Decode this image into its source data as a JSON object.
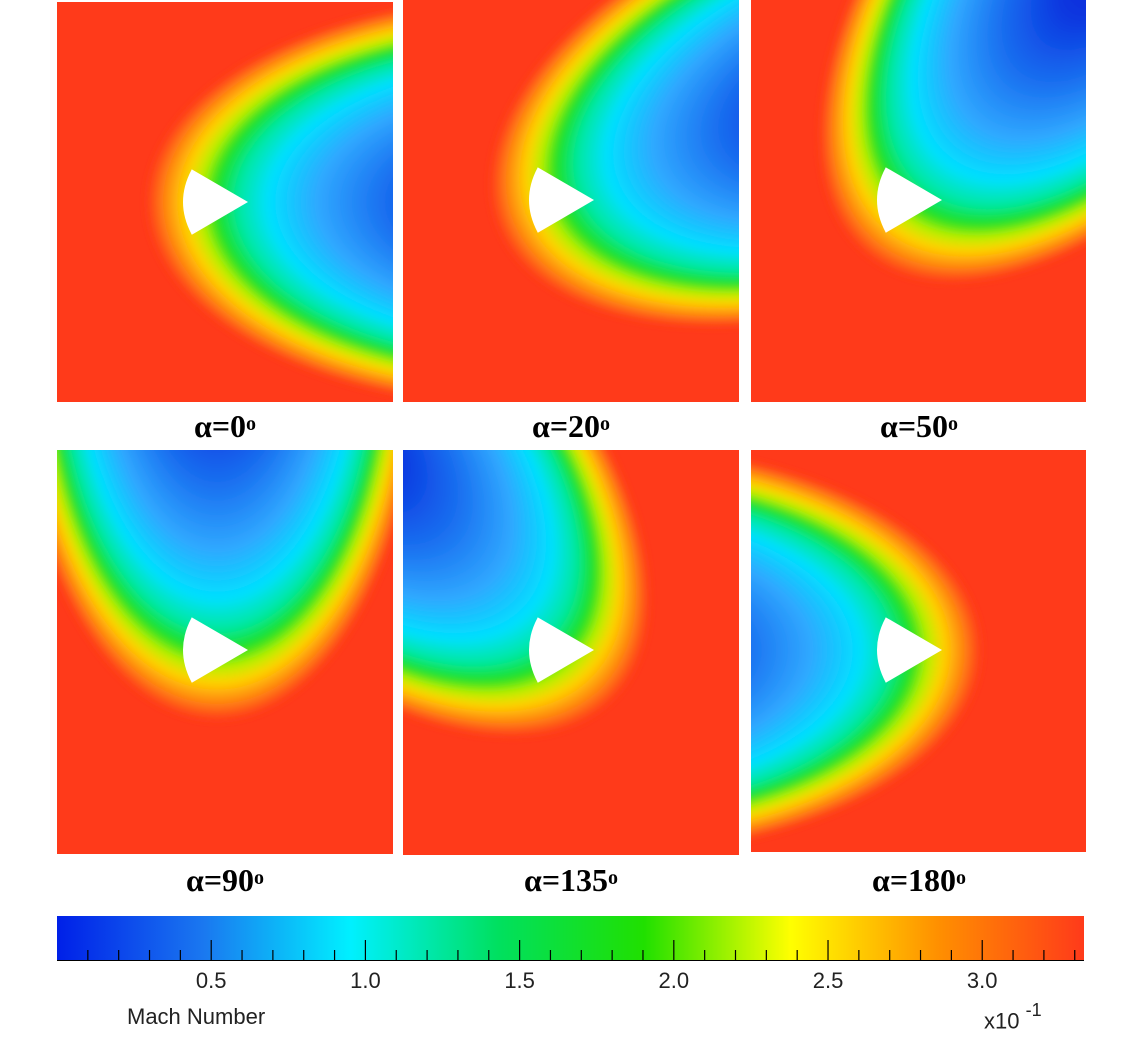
{
  "panels": [
    {
      "label": "α=0",
      "angle": 0
    },
    {
      "label": "α=20",
      "angle": 20
    },
    {
      "label": "α=50",
      "angle": 50
    },
    {
      "label": "α=90",
      "angle": 90
    },
    {
      "label": "α=135",
      "angle": 135
    },
    {
      "label": "α=180",
      "angle": 180
    }
  ],
  "degree_symbol": "o",
  "colorbar": {
    "title": "Mach Number",
    "multiplier_base": "x10",
    "multiplier_exponent": "-1",
    "tick_labels": [
      "0.5",
      "1.0",
      "1.5",
      "2.0",
      "2.5",
      "3.0"
    ],
    "tick_values": [
      0.5,
      1.0,
      1.5,
      2.0,
      2.5,
      3.0
    ],
    "min": 0,
    "max": 3.33,
    "colors": [
      "#0020e8",
      "#1a78f0",
      "#00f0ff",
      "#00e060",
      "#20e000",
      "#ffff00",
      "#ff9000",
      "#ff3a1a"
    ]
  }
}
